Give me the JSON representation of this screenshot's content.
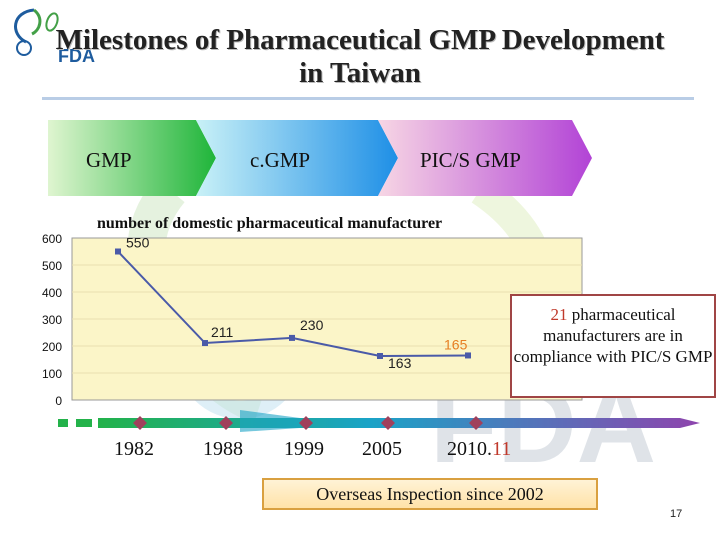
{
  "logo": {
    "text": "FDA"
  },
  "title": {
    "line1": "Milestones of Pharmaceutical GMP Development",
    "line2": "in Taiwan"
  },
  "phases": [
    {
      "label": "GMP",
      "color": "#22b14c"
    },
    {
      "label": "c.GMP",
      "color": "#1e90ff"
    },
    {
      "label": "PIC/S GMP",
      "color": "#b24cd8"
    }
  ],
  "chart_data": {
    "type": "line",
    "title": "number of domestic pharmaceutical manufacturer",
    "x": [
      "1982",
      "1988",
      "1999",
      "2005",
      "2010.11"
    ],
    "values": [
      550,
      211,
      230,
      163,
      165
    ],
    "data_labels": [
      "550",
      "211",
      "230",
      "163",
      "165"
    ],
    "ylim": [
      0,
      600
    ],
    "yticks": [
      "0",
      "100",
      "200",
      "300",
      "400",
      "500",
      "600"
    ],
    "plot_bg": "#fbf5c8",
    "line_color": "#4a5aa8",
    "label_color_last": "#e67e22"
  },
  "timeline": {
    "years": [
      {
        "main": "1982",
        "suffix": ""
      },
      {
        "main": "1988",
        "suffix": ""
      },
      {
        "main": "1999",
        "suffix": ""
      },
      {
        "main": "2005",
        "suffix": ""
      },
      {
        "main": "2010.",
        "suffix": "11"
      }
    ]
  },
  "callout": {
    "number": "21",
    "text": " pharmaceutical manufacturers are in compliance with PIC/S GMP"
  },
  "inspection": {
    "text": "Overseas Inspection since 2002"
  },
  "page_number": "17"
}
